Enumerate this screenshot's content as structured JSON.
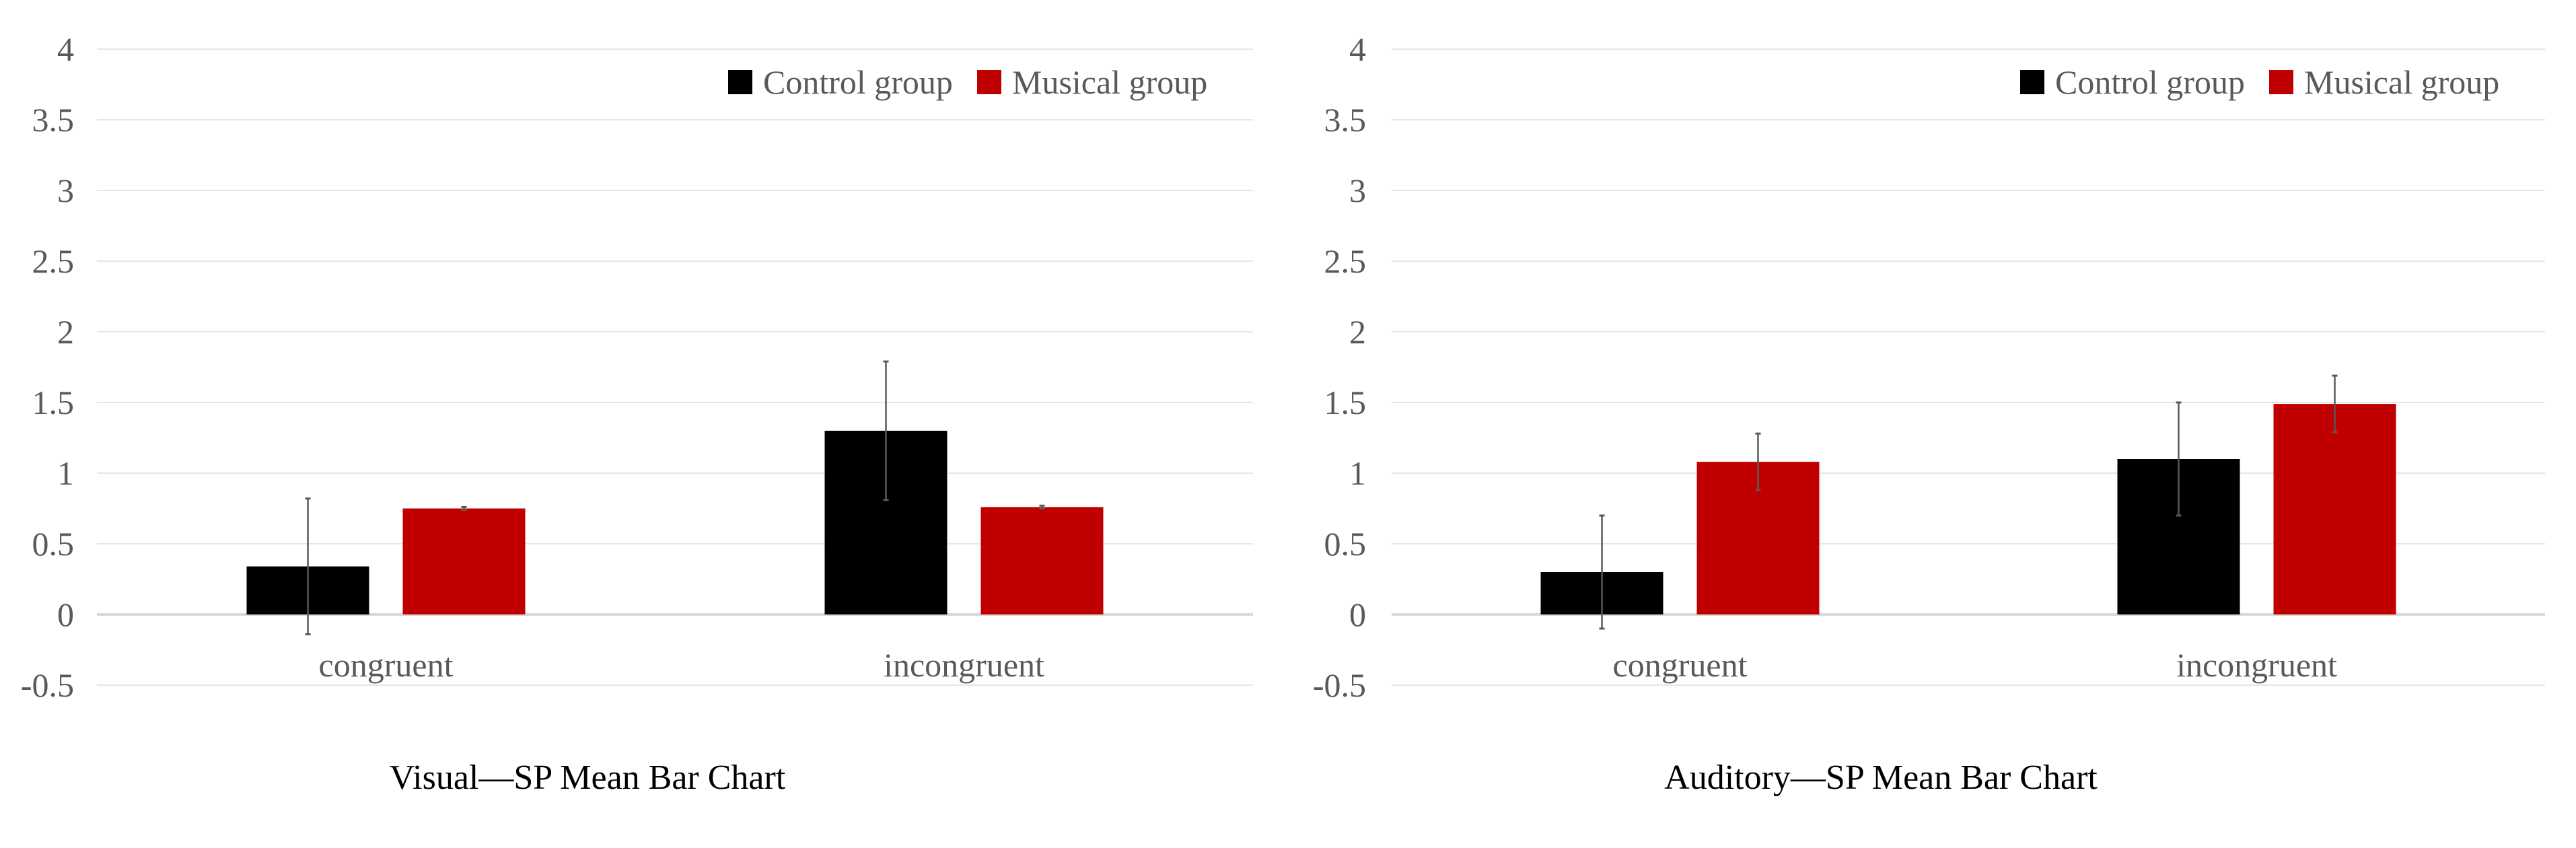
{
  "chart_data": [
    {
      "type": "bar",
      "title": "Visual—SP Mean Bar Chart",
      "xlabel": "",
      "ylabel": "",
      "categories": [
        "congruent",
        "incongruent"
      ],
      "ylim": [
        -0.5,
        4
      ],
      "yticks": [
        "-0.5",
        "0",
        "0.5",
        "1",
        "1.5",
        "2",
        "2.5",
        "3",
        "3.5",
        "4"
      ],
      "grid": true,
      "legend_position": "top-right",
      "series": [
        {
          "name": "Control group",
          "color": "#000000",
          "values": [
            0.34,
            1.3
          ],
          "errors": [
            0.48,
            0.49
          ]
        },
        {
          "name": "Musical group",
          "color": "#C00000",
          "values": [
            0.75,
            0.76
          ],
          "errors": [
            0.01,
            0.01
          ]
        }
      ]
    },
    {
      "type": "bar",
      "title": "Auditory—SP Mean Bar Chart",
      "xlabel": "",
      "ylabel": "",
      "categories": [
        "congruent",
        "incongruent"
      ],
      "ylim": [
        -0.5,
        4
      ],
      "yticks": [
        "-0.5",
        "0",
        "0.5",
        "1",
        "1.5",
        "2",
        "2.5",
        "3",
        "3.5",
        "4"
      ],
      "grid": true,
      "legend_position": "top-right",
      "series": [
        {
          "name": "Control group",
          "color": "#000000",
          "values": [
            0.3,
            1.1
          ],
          "errors": [
            0.4,
            0.4
          ]
        },
        {
          "name": "Musical group",
          "color": "#C00000",
          "values": [
            1.08,
            1.49
          ],
          "errors": [
            0.2,
            0.2
          ]
        }
      ]
    }
  ]
}
